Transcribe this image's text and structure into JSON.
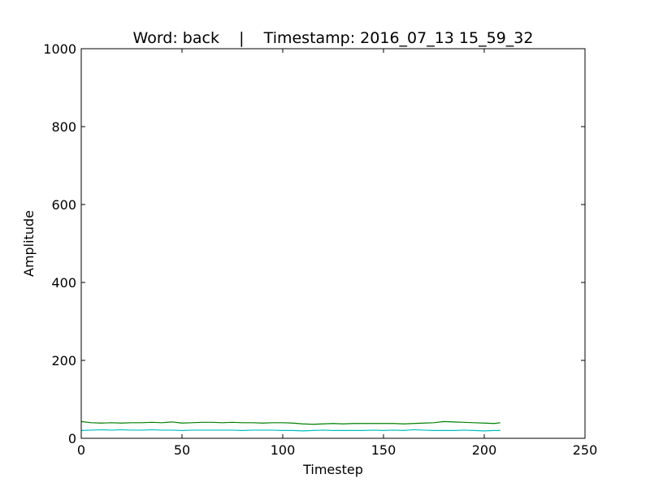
{
  "chart_data": {
    "type": "line",
    "title": "Word: back    |    Timestamp: 2016_07_13 15_59_32",
    "xlabel": "Timestep",
    "ylabel": "Amplitude",
    "xlim": [
      0,
      250
    ],
    "ylim": [
      0,
      1000
    ],
    "xticks": [
      0,
      50,
      100,
      150,
      200,
      250
    ],
    "yticks": [
      0,
      200,
      400,
      600,
      800,
      1000
    ],
    "grid": false,
    "legend": "none",
    "x": [
      0,
      5,
      10,
      15,
      20,
      25,
      30,
      35,
      40,
      45,
      50,
      55,
      60,
      65,
      70,
      75,
      80,
      85,
      90,
      95,
      100,
      105,
      110,
      115,
      120,
      125,
      130,
      135,
      140,
      145,
      150,
      155,
      160,
      165,
      170,
      175,
      180,
      185,
      190,
      195,
      200,
      205,
      208
    ],
    "series": [
      {
        "color": "#008000",
        "values": [
          43,
          40,
          39,
          40,
          39,
          40,
          40,
          41,
          40,
          42,
          39,
          40,
          41,
          41,
          40,
          41,
          40,
          40,
          39,
          40,
          40,
          39,
          37,
          36,
          37,
          38,
          37,
          38,
          38,
          38,
          38,
          38,
          37,
          38,
          39,
          40,
          43,
          42,
          41,
          40,
          39,
          38,
          40
        ]
      },
      {
        "color": "#00bfbf",
        "values": [
          20,
          21,
          22,
          21,
          22,
          21,
          21,
          22,
          21,
          21,
          20,
          21,
          21,
          21,
          21,
          21,
          20,
          21,
          21,
          21,
          20,
          20,
          19,
          20,
          21,
          20,
          20,
          20,
          20,
          21,
          20,
          21,
          20,
          22,
          21,
          20,
          20,
          20,
          21,
          20,
          19,
          20,
          20
        ]
      }
    ]
  }
}
